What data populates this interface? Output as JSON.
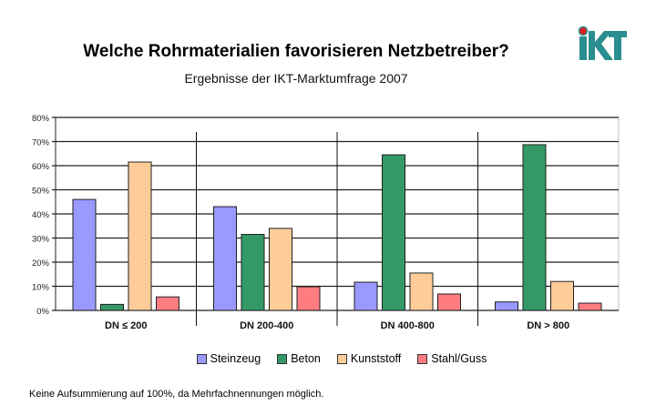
{
  "logo_text": "iKT",
  "chart_data": {
    "type": "bar",
    "title": "Welche Rohrmaterialien favorisieren Netzbetreiber?",
    "subtitle": "Ergebnisse der IKT-Marktumfrage 2007",
    "categories": [
      "DN ≤ 200",
      "DN 200-400",
      "DN 400-800",
      "DN > 800"
    ],
    "series": [
      {
        "name": "Steinzeug",
        "color": "#9999ff",
        "values": [
          46,
          43,
          11.7,
          3.5
        ]
      },
      {
        "name": "Beton",
        "color": "#339966",
        "values": [
          2.5,
          31.5,
          64.5,
          68.7
        ]
      },
      {
        "name": "Kunststoff",
        "color": "#ffcc99",
        "values": [
          61.5,
          34,
          15.5,
          12
        ]
      },
      {
        "name": "Stahl/Guss",
        "color": "#ff7c80",
        "values": [
          5.6,
          9.8,
          6.8,
          3
        ]
      }
    ],
    "ylim": [
      0,
      80
    ],
    "yticks": [
      "0%",
      "10%",
      "20%",
      "30%",
      "40%",
      "50%",
      "60%",
      "70%",
      "80%"
    ],
    "grid": true,
    "legend": "bottom",
    "xlabel": "",
    "ylabel": ""
  },
  "footnote": "Keine Aufsummierung auf 100%, da Mehrfachnennungen möglich."
}
